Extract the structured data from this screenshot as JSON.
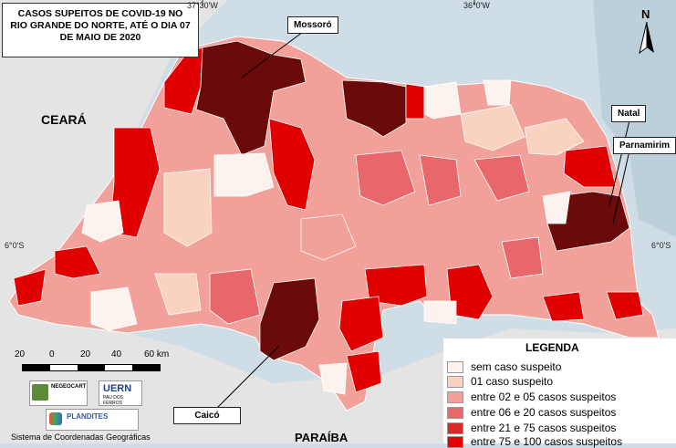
{
  "title_lines": [
    "CASOS SUPEITOS DE COVID-19 NO",
    "RIO GRANDE DO NORTE, ATÉ O DIA 07",
    "DE MAIO DE 2020"
  ],
  "coords": {
    "top_left": "37°30'W",
    "top_mid": "36°0'W",
    "left": "6°0'S",
    "right": "6°0'S"
  },
  "states": {
    "ceara": "CEARÁ",
    "paraiba": "PARAÍBA"
  },
  "callouts": {
    "mossoro": "Mossoró",
    "natal": "Natal",
    "parnamirim": "Parnamirim",
    "caico": "Caicó"
  },
  "north_label": "N",
  "scale": {
    "labels": [
      "20",
      "0",
      "20",
      "40",
      "60 km"
    ]
  },
  "logos": {
    "negeo": "NEGEOCART",
    "uern": "UERN",
    "uern_sub": "PAU DOS FERROS",
    "plandites": "PLANDITES"
  },
  "footer": "Sistema de Coordenadas Geográficas",
  "legend": {
    "title": "LEGENDA",
    "items": [
      {
        "label": "sem caso suspeito",
        "color": "#fdf3ee"
      },
      {
        "label": "01 caso suspeito",
        "color": "#f9d2c0"
      },
      {
        "label": "entre 02 e 05 casos suspeitos",
        "color": "#f2a09a"
      },
      {
        "label": "entre 06 e 20 casos suspeitos",
        "color": "#e8676a"
      },
      {
        "label": "entre 21 e 75 casos suspeitos",
        "color": "#d82a2a"
      },
      {
        "label": "entre 75 e 100 casos suspeitos",
        "color": "#e60000"
      }
    ]
  },
  "colors": {
    "dark": "#6a0a0a",
    "ocean": "#cfdde6",
    "land_out": "#e9e9e9"
  }
}
